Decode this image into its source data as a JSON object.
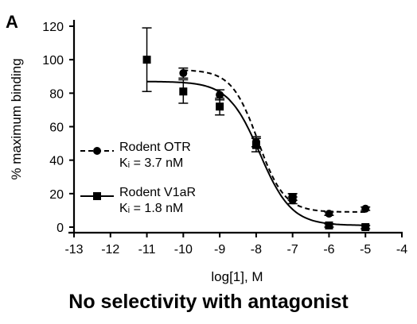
{
  "caption": "No selectivity with antagonist",
  "chart_data": {
    "type": "scatter",
    "panel_label": "A",
    "xlabel": "log[1], M",
    "ylabel": "% maximum binding",
    "xlim": [
      -13,
      -4
    ],
    "ylim": [
      0,
      120
    ],
    "x_ticks": [
      -13,
      -12,
      -11,
      -10,
      -9,
      -8,
      -7,
      -6,
      -5,
      -4
    ],
    "y_ticks": [
      0,
      20,
      40,
      60,
      80,
      100,
      120
    ],
    "grid": false,
    "legend_position": "lower-left",
    "series": [
      {
        "name": "Rodent OTR",
        "ki_label": "Kᵢ = 3.7 nM",
        "marker": "circle",
        "line_style": "dashed",
        "color": "#000000",
        "points": [
          {
            "x": -10,
            "y": 92,
            "err": 3
          },
          {
            "x": -9,
            "y": 79,
            "err": 3
          },
          {
            "x": -8,
            "y": 51,
            "err": 3
          },
          {
            "x": -7,
            "y": 16,
            "err": 2
          },
          {
            "x": -6,
            "y": 8,
            "err": 1
          },
          {
            "x": -5,
            "y": 11,
            "err": 1
          }
        ],
        "fit": {
          "top": 94,
          "bottom": 9,
          "log_ic50": -7.95,
          "hill": -1.2
        }
      },
      {
        "name": "Rodent V1aR",
        "ki_label": "Kᵢ = 1.8 nM",
        "marker": "square",
        "line_style": "solid",
        "color": "#000000",
        "points": [
          {
            "x": -11,
            "y": 100,
            "err": 19
          },
          {
            "x": -10,
            "y": 81,
            "err": 7
          },
          {
            "x": -9,
            "y": 72,
            "err": 5
          },
          {
            "x": -8,
            "y": 49,
            "err": 4
          },
          {
            "x": -7,
            "y": 18,
            "err": 2
          },
          {
            "x": -6,
            "y": 1,
            "err": 1
          },
          {
            "x": -5,
            "y": 0,
            "err": 1
          }
        ],
        "fit": {
          "top": 87,
          "bottom": 1,
          "log_ic50": -7.9,
          "hill": -1.0
        }
      }
    ]
  }
}
